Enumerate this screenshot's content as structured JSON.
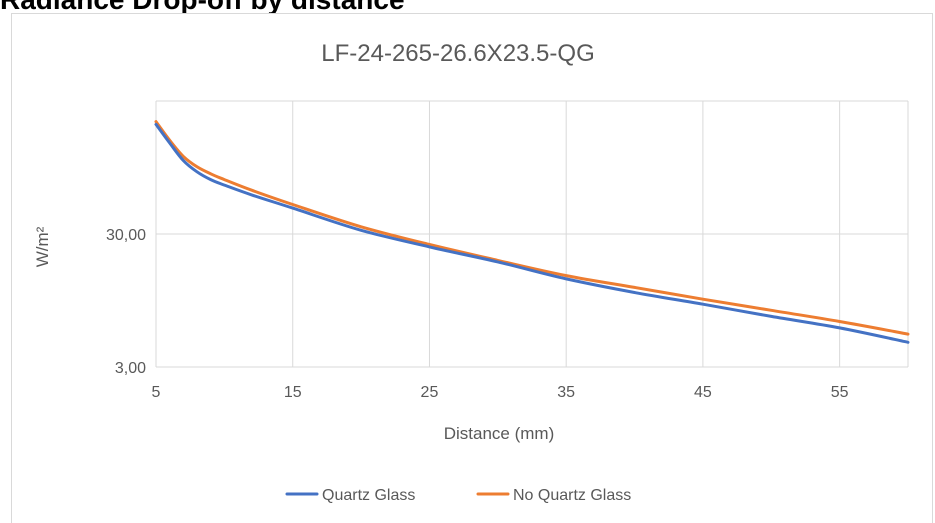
{
  "heading": "Radiance Drop-off by distance",
  "chart_data": {
    "type": "line",
    "title": "LF-24-265-26.6X23.5-QG",
    "xlabel": "Distance (mm)",
    "ylabel": "W/m²",
    "x_ticks": [
      "5",
      "15",
      "25",
      "35",
      "45",
      "55"
    ],
    "y_ticks": [
      "3,00",
      "30,00"
    ],
    "xlim": [
      5,
      60
    ],
    "ylim": [
      3,
      300
    ],
    "y_scale": "log",
    "grid": true,
    "legend": "bottom",
    "series": [
      {
        "name": "Quartz Glass",
        "color": "#4472C4",
        "x": [
          5,
          6,
          7,
          8,
          9,
          10,
          12,
          15,
          20,
          25,
          30,
          35,
          40,
          45,
          50,
          55,
          60
        ],
        "y": [
          200,
          145,
          107,
          88,
          77,
          70,
          59,
          47,
          32,
          24,
          18.5,
          13.8,
          10.9,
          8.9,
          7.2,
          5.9,
          4.6
        ]
      },
      {
        "name": "No Quartz Glass",
        "color": "#ED7D31",
        "x": [
          5,
          6,
          7,
          8,
          9,
          10,
          12,
          15,
          20,
          25,
          30,
          35,
          40,
          45,
          50,
          55,
          60
        ],
        "y": [
          210,
          152,
          115,
          96,
          85,
          77,
          64,
          50,
          34,
          25,
          19,
          14.6,
          11.9,
          9.7,
          8.0,
          6.6,
          5.3
        ]
      }
    ]
  }
}
